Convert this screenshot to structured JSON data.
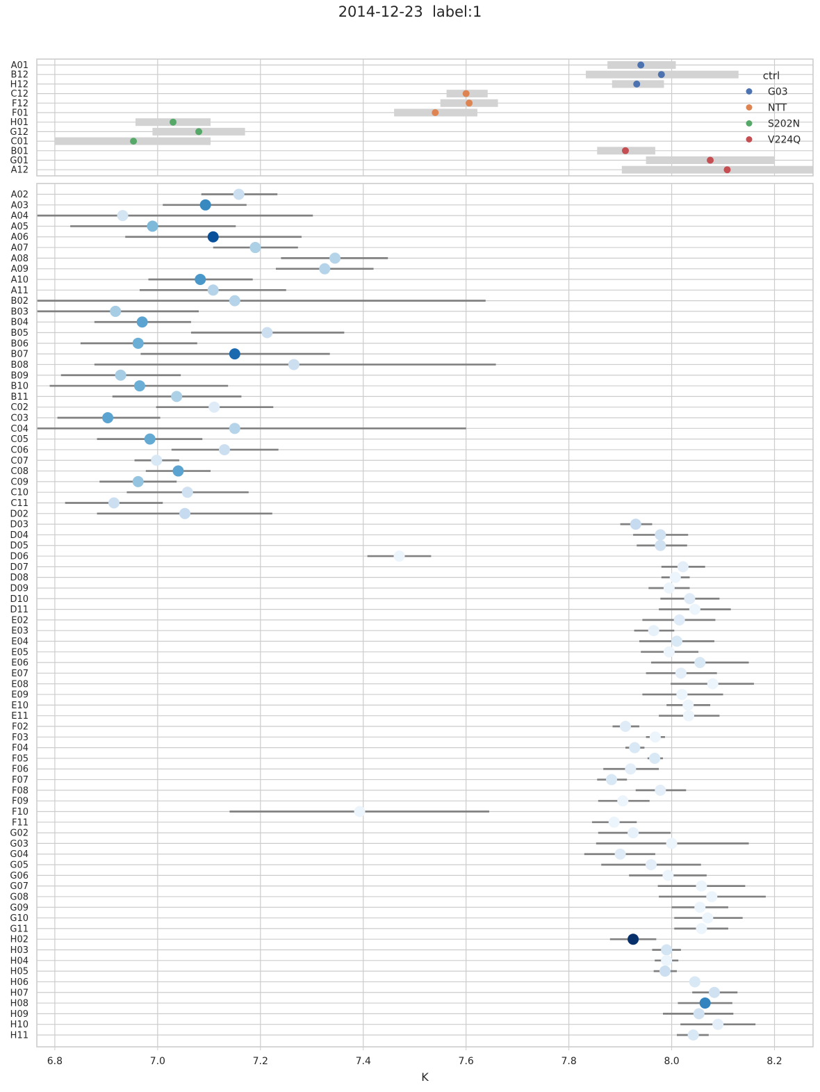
{
  "title": "2014-12-23  label:1",
  "chart_data": [
    {
      "type": "scatter",
      "panel": "controls",
      "xlim": [
        6.765,
        8.275
      ],
      "x_ticks": [
        6.8,
        7.0,
        7.2,
        7.4,
        7.6,
        7.8,
        8.0,
        8.2
      ],
      "grid": true,
      "legend": {
        "title": "ctrl",
        "placement": "top-right"
      },
      "groups": [
        {
          "name": "G03",
          "color": "#4c72b0"
        },
        {
          "name": "NTT",
          "color": "#dd8452"
        },
        {
          "name": "S202N",
          "color": "#55a868"
        },
        {
          "name": "V224Q",
          "color": "#c44e52"
        }
      ],
      "rows": [
        {
          "label": "A01",
          "group": "G03",
          "x": 7.94,
          "lo": 7.875,
          "hi": 8.008
        },
        {
          "label": "B12",
          "group": "G03",
          "x": 7.98,
          "lo": 7.833,
          "hi": 8.13
        },
        {
          "label": "H12",
          "group": "G03",
          "x": 7.932,
          "lo": 7.884,
          "hi": 7.985
        },
        {
          "label": "C12",
          "group": "NTT",
          "x": 7.6,
          "lo": 7.562,
          "hi": 7.642
        },
        {
          "label": "F12",
          "group": "NTT",
          "x": 7.606,
          "lo": 7.55,
          "hi": 7.662
        },
        {
          "label": "F01",
          "group": "NTT",
          "x": 7.54,
          "lo": 7.46,
          "hi": 7.622
        },
        {
          "label": "H01",
          "group": "S202N",
          "x": 7.03,
          "lo": 6.957,
          "hi": 7.103
        },
        {
          "label": "G12",
          "group": "S202N",
          "x": 7.08,
          "lo": 6.99,
          "hi": 7.17
        },
        {
          "label": "C01",
          "group": "S202N",
          "x": 6.953,
          "lo": 6.8,
          "hi": 7.103
        },
        {
          "label": "B01",
          "group": "V224Q",
          "x": 7.91,
          "lo": 7.855,
          "hi": 7.968
        },
        {
          "label": "G01",
          "group": "V224Q",
          "x": 8.075,
          "lo": 7.95,
          "hi": 8.2
        },
        {
          "label": "A12",
          "group": "V224Q",
          "x": 8.108,
          "lo": 7.903,
          "hi": 8.29
        }
      ]
    },
    {
      "type": "scatter",
      "panel": "wells",
      "xlabel": "K",
      "xlim": [
        6.765,
        8.275
      ],
      "x_ticks": [
        6.8,
        7.0,
        7.2,
        7.4,
        7.6,
        7.8,
        8.0,
        8.2
      ],
      "grid": true,
      "point_color_scale": "Blues",
      "rows": [
        {
          "label": "A02",
          "x": 7.158,
          "lo": 7.085,
          "hi": 7.233,
          "c": 0.22
        },
        {
          "label": "A03",
          "x": 7.093,
          "lo": 7.01,
          "hi": 7.173,
          "c": 0.66
        },
        {
          "label": "A04",
          "x": 6.932,
          "lo": 6.765,
          "hi": 7.302,
          "c": 0.18
        },
        {
          "label": "A05",
          "x": 6.99,
          "lo": 6.83,
          "hi": 7.152,
          "c": 0.45
        },
        {
          "label": "A06",
          "x": 7.108,
          "lo": 6.937,
          "hi": 7.28,
          "c": 0.88
        },
        {
          "label": "A07",
          "x": 7.19,
          "lo": 7.108,
          "hi": 7.273,
          "c": 0.33
        },
        {
          "label": "A08",
          "x": 7.345,
          "lo": 7.24,
          "hi": 7.448,
          "c": 0.3
        },
        {
          "label": "A09",
          "x": 7.325,
          "lo": 7.23,
          "hi": 7.42,
          "c": 0.3
        },
        {
          "label": "A10",
          "x": 7.083,
          "lo": 6.982,
          "hi": 7.185,
          "c": 0.6
        },
        {
          "label": "A11",
          "x": 7.108,
          "lo": 6.965,
          "hi": 7.25,
          "c": 0.3
        },
        {
          "label": "B02",
          "x": 7.15,
          "lo": 6.765,
          "hi": 7.638,
          "c": 0.3
        },
        {
          "label": "B03",
          "x": 6.918,
          "lo": 6.765,
          "hi": 7.08,
          "c": 0.35
        },
        {
          "label": "B04",
          "x": 6.97,
          "lo": 6.877,
          "hi": 7.065,
          "c": 0.55
        },
        {
          "label": "B05",
          "x": 7.213,
          "lo": 7.065,
          "hi": 7.363,
          "c": 0.22
        },
        {
          "label": "B06",
          "x": 6.962,
          "lo": 6.85,
          "hi": 7.077,
          "c": 0.5
        },
        {
          "label": "B07",
          "x": 7.15,
          "lo": 6.967,
          "hi": 7.335,
          "c": 0.78
        },
        {
          "label": "B08",
          "x": 7.265,
          "lo": 6.877,
          "hi": 7.658,
          "c": 0.22
        },
        {
          "label": "B09",
          "x": 6.928,
          "lo": 6.812,
          "hi": 7.045,
          "c": 0.35
        },
        {
          "label": "B10",
          "x": 6.965,
          "lo": 6.79,
          "hi": 7.137,
          "c": 0.5
        },
        {
          "label": "B11",
          "x": 7.037,
          "lo": 6.912,
          "hi": 7.163,
          "c": 0.33
        },
        {
          "label": "C02",
          "x": 7.11,
          "lo": 6.997,
          "hi": 7.225,
          "c": 0.12
        },
        {
          "label": "C03",
          "x": 6.903,
          "lo": 6.805,
          "hi": 7.005,
          "c": 0.55
        },
        {
          "label": "C04",
          "x": 7.15,
          "lo": 6.765,
          "hi": 7.6,
          "c": 0.3
        },
        {
          "label": "C05",
          "x": 6.985,
          "lo": 6.882,
          "hi": 7.087,
          "c": 0.52
        },
        {
          "label": "C06",
          "x": 7.13,
          "lo": 7.027,
          "hi": 7.235,
          "c": 0.22
        },
        {
          "label": "C07",
          "x": 6.998,
          "lo": 6.955,
          "hi": 7.042,
          "c": 0.15
        },
        {
          "label": "C08",
          "x": 7.04,
          "lo": 6.977,
          "hi": 7.103,
          "c": 0.55
        },
        {
          "label": "C09",
          "x": 6.962,
          "lo": 6.887,
          "hi": 7.037,
          "c": 0.4
        },
        {
          "label": "C10",
          "x": 7.058,
          "lo": 6.94,
          "hi": 7.177,
          "c": 0.2
        },
        {
          "label": "C11",
          "x": 6.915,
          "lo": 6.82,
          "hi": 7.01,
          "c": 0.22
        },
        {
          "label": "D02",
          "x": 7.053,
          "lo": 6.882,
          "hi": 7.223,
          "c": 0.25
        },
        {
          "label": "D03",
          "x": 7.93,
          "lo": 7.9,
          "hi": 7.962,
          "c": 0.25
        },
        {
          "label": "D04",
          "x": 7.978,
          "lo": 7.925,
          "hi": 8.032,
          "c": 0.2
        },
        {
          "label": "D05",
          "x": 7.978,
          "lo": 7.932,
          "hi": 8.03,
          "c": 0.2
        },
        {
          "label": "D06",
          "x": 7.47,
          "lo": 7.408,
          "hi": 7.532,
          "c": 0.05
        },
        {
          "label": "D07",
          "x": 8.022,
          "lo": 7.98,
          "hi": 8.065,
          "c": 0.1
        },
        {
          "label": "D08",
          "x": 8.007,
          "lo": 7.98,
          "hi": 8.035,
          "c": 0.05
        },
        {
          "label": "D09",
          "x": 7.995,
          "lo": 7.955,
          "hi": 8.035,
          "c": 0.05
        },
        {
          "label": "D10",
          "x": 8.035,
          "lo": 7.978,
          "hi": 8.093,
          "c": 0.12
        },
        {
          "label": "D11",
          "x": 8.045,
          "lo": 7.975,
          "hi": 8.115,
          "c": 0.05
        },
        {
          "label": "E02",
          "x": 8.015,
          "lo": 7.943,
          "hi": 8.085,
          "c": 0.12
        },
        {
          "label": "E03",
          "x": 7.965,
          "lo": 7.927,
          "hi": 8.005,
          "c": 0.08
        },
        {
          "label": "E04",
          "x": 8.01,
          "lo": 7.937,
          "hi": 8.083,
          "c": 0.15
        },
        {
          "label": "E05",
          "x": 7.995,
          "lo": 7.94,
          "hi": 8.052,
          "c": 0.05
        },
        {
          "label": "E06",
          "x": 8.055,
          "lo": 7.96,
          "hi": 8.15,
          "c": 0.15
        },
        {
          "label": "E07",
          "x": 8.018,
          "lo": 7.95,
          "hi": 8.088,
          "c": 0.1
        },
        {
          "label": "E08",
          "x": 8.08,
          "lo": 7.998,
          "hi": 8.16,
          "c": 0.05
        },
        {
          "label": "E09",
          "x": 8.02,
          "lo": 7.943,
          "hi": 8.1,
          "c": 0.05
        },
        {
          "label": "E10",
          "x": 8.032,
          "lo": 7.99,
          "hi": 8.075,
          "c": 0.05
        },
        {
          "label": "E11",
          "x": 8.033,
          "lo": 7.975,
          "hi": 8.093,
          "c": 0.05
        },
        {
          "label": "F02",
          "x": 7.91,
          "lo": 7.885,
          "hi": 7.937,
          "c": 0.12
        },
        {
          "label": "F03",
          "x": 7.968,
          "lo": 7.95,
          "hi": 7.987,
          "c": 0.05
        },
        {
          "label": "F04",
          "x": 7.928,
          "lo": 7.91,
          "hi": 7.947,
          "c": 0.15
        },
        {
          "label": "F05",
          "x": 7.967,
          "lo": 7.953,
          "hi": 7.983,
          "c": 0.15
        },
        {
          "label": "F06",
          "x": 7.92,
          "lo": 7.867,
          "hi": 7.975,
          "c": 0.1
        },
        {
          "label": "F07",
          "x": 7.883,
          "lo": 7.855,
          "hi": 7.913,
          "c": 0.15
        },
        {
          "label": "F08",
          "x": 7.978,
          "lo": 7.93,
          "hi": 8.028,
          "c": 0.1
        },
        {
          "label": "F09",
          "x": 7.905,
          "lo": 7.857,
          "hi": 7.957,
          "c": 0.05
        },
        {
          "label": "F10",
          "x": 7.393,
          "lo": 7.14,
          "hi": 7.645,
          "c": 0.05
        },
        {
          "label": "F11",
          "x": 7.888,
          "lo": 7.845,
          "hi": 7.932,
          "c": 0.05
        },
        {
          "label": "G02",
          "x": 7.925,
          "lo": 7.857,
          "hi": 7.998,
          "c": 0.08
        },
        {
          "label": "G03",
          "x": 8.0,
          "lo": 7.853,
          "hi": 8.15,
          "c": 0.05
        },
        {
          "label": "G04",
          "x": 7.9,
          "lo": 7.83,
          "hi": 7.968,
          "c": 0.12
        },
        {
          "label": "G05",
          "x": 7.96,
          "lo": 7.863,
          "hi": 8.057,
          "c": 0.1
        },
        {
          "label": "G06",
          "x": 7.993,
          "lo": 7.917,
          "hi": 8.068,
          "c": 0.05
        },
        {
          "label": "G07",
          "x": 8.058,
          "lo": 7.973,
          "hi": 8.143,
          "c": 0.05
        },
        {
          "label": "G08",
          "x": 8.078,
          "lo": 7.975,
          "hi": 8.183,
          "c": 0.05
        },
        {
          "label": "G09",
          "x": 8.055,
          "lo": 8.0,
          "hi": 8.11,
          "c": 0.05
        },
        {
          "label": "G10",
          "x": 8.07,
          "lo": 8.005,
          "hi": 8.138,
          "c": 0.05
        },
        {
          "label": "G11",
          "x": 8.058,
          "lo": 8.005,
          "hi": 8.11,
          "c": 0.05
        },
        {
          "label": "H02",
          "x": 7.925,
          "lo": 7.88,
          "hi": 7.97,
          "c": 1.0
        },
        {
          "label": "H03",
          "x": 7.99,
          "lo": 7.962,
          "hi": 8.018,
          "c": 0.18
        },
        {
          "label": "H04",
          "x": 7.99,
          "lo": 7.967,
          "hi": 8.013,
          "c": 0.05
        },
        {
          "label": "H05",
          "x": 7.987,
          "lo": 7.965,
          "hi": 8.01,
          "c": 0.22
        },
        {
          "label": "H06",
          "x": 8.045,
          "lo": 8.045,
          "hi": 8.045,
          "c": 0.15
        },
        {
          "label": "H07",
          "x": 8.083,
          "lo": 8.04,
          "hi": 8.128,
          "c": 0.2
        },
        {
          "label": "H08",
          "x": 8.065,
          "lo": 8.012,
          "hi": 8.118,
          "c": 0.68
        },
        {
          "label": "H09",
          "x": 8.053,
          "lo": 7.983,
          "hi": 8.12,
          "c": 0.2
        },
        {
          "label": "H10",
          "x": 8.09,
          "lo": 8.017,
          "hi": 8.163,
          "c": 0.1
        },
        {
          "label": "H11",
          "x": 8.042,
          "lo": 8.01,
          "hi": 8.072,
          "c": 0.15
        }
      ]
    }
  ]
}
